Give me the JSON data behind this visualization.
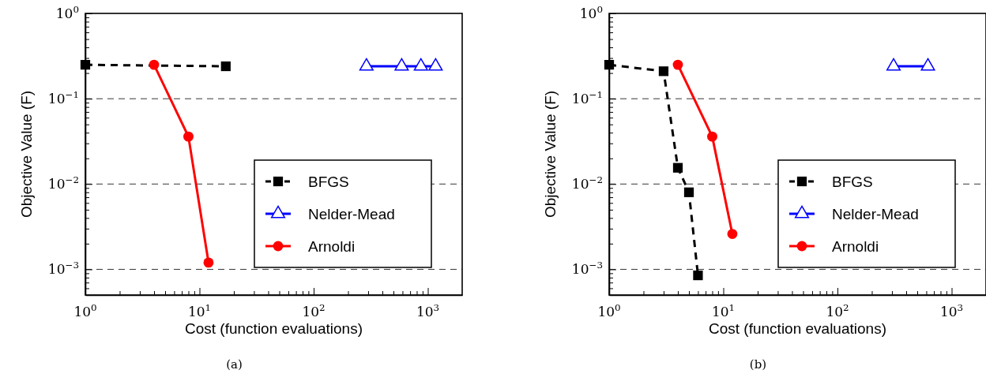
{
  "chart_data": [
    {
      "type": "line",
      "xlabel": "Cost (function evaluations)",
      "ylabel": "Objective Value (F)",
      "annotations": [
        "(a)"
      ],
      "log": "xy",
      "grid": "y",
      "legend": "right",
      "xlim": [
        1,
        2000
      ],
      "ylim": [
        0.0005,
        1
      ],
      "xticks": [
        {
          "value": 1,
          "label": "10$^{0}$"
        },
        {
          "value": 2,
          "label": null
        },
        {
          "value": 3,
          "label": null
        },
        {
          "value": 4,
          "label": null
        },
        {
          "value": 5,
          "label": null
        },
        {
          "value": 6,
          "label": null
        },
        {
          "value": 7,
          "label": null
        },
        {
          "value": 8,
          "label": null
        },
        {
          "value": 9,
          "label": null
        },
        {
          "value": 10,
          "label": "10$^{1}$"
        },
        {
          "value": 20,
          "label": null
        },
        {
          "value": 30,
          "label": null
        },
        {
          "value": 40,
          "label": null
        },
        {
          "value": 50,
          "label": null
        },
        {
          "value": 60,
          "label": null
        },
        {
          "value": 70,
          "label": null
        },
        {
          "value": 80,
          "label": null
        },
        {
          "value": 90,
          "label": null
        },
        {
          "value": 100,
          "label": "10$^{2}$"
        },
        {
          "value": 200,
          "label": null
        },
        {
          "value": 300,
          "label": null
        },
        {
          "value": 400,
          "label": null
        },
        {
          "value": 500,
          "label": null
        },
        {
          "value": 600,
          "label": null
        },
        {
          "value": 700,
          "label": null
        },
        {
          "value": 800,
          "label": null
        },
        {
          "value": 900,
          "label": null
        },
        {
          "value": 1000,
          "label": "10$^{3}$"
        }
      ],
      "yticks": [
        {
          "value": 0.0006,
          "label": null
        },
        {
          "value": 0.0007,
          "label": null
        },
        {
          "value": 0.0008,
          "label": null
        },
        {
          "value": 0.0009,
          "label": null
        },
        {
          "value": 0.001,
          "label": "10$^{−3}$"
        },
        {
          "value": 0.002,
          "label": null
        },
        {
          "value": 0.003,
          "label": null
        },
        {
          "value": 0.004,
          "label": null
        },
        {
          "value": 0.005,
          "label": null
        },
        {
          "value": 0.006,
          "label": null
        },
        {
          "value": 0.007,
          "label": null
        },
        {
          "value": 0.008,
          "label": null
        },
        {
          "value": 0.009,
          "label": null
        },
        {
          "value": 0.01,
          "label": "10$^{−2}$"
        },
        {
          "value": 0.02,
          "label": null
        },
        {
          "value": 0.03,
          "label": null
        },
        {
          "value": 0.04,
          "label": null
        },
        {
          "value": 0.05,
          "label": null
        },
        {
          "value": 0.06,
          "label": null
        },
        {
          "value": 0.07,
          "label": null
        },
        {
          "value": 0.08,
          "label": null
        },
        {
          "value": 0.09,
          "label": null
        },
        {
          "value": 0.1,
          "label": "10$^{−1}$"
        },
        {
          "value": 0.2,
          "label": null
        },
        {
          "value": 0.3,
          "label": null
        },
        {
          "value": 0.4,
          "label": null
        },
        {
          "value": 0.5,
          "label": null
        },
        {
          "value": 0.6,
          "label": null
        },
        {
          "value": 0.7,
          "label": null
        },
        {
          "value": 0.8,
          "label": null
        },
        {
          "value": 0.9,
          "label": null
        },
        {
          "value": 1,
          "label": "10$^{0}$"
        }
      ],
      "series": [
        {
          "name": "BFGS",
          "color": "#000000",
          "marker": "square",
          "line_style": "dashed",
          "x": [
            1,
            17
          ],
          "values": [
            0.25,
            0.24
          ]
        },
        {
          "name": "Nelder-Mead",
          "color": "#0000ff",
          "marker": "triangle",
          "line_style": "solid",
          "x": [
            290,
            590,
            870,
            1170
          ],
          "values": [
            0.24,
            0.24,
            0.24,
            0.24
          ]
        },
        {
          "name": "Arnoldi",
          "color": "#ff0000",
          "marker": "circle",
          "line_style": "solid",
          "x": [
            4,
            8,
            12
          ],
          "values": [
            0.25,
            0.036,
            0.0012
          ]
        }
      ]
    },
    {
      "type": "line",
      "xlabel": "Cost (function evaluations)",
      "ylabel": "Objective Value (F)",
      "annotations": [
        "(b)"
      ],
      "log": "xy",
      "grid": "y",
      "legend": "right",
      "xlim": [
        1,
        2000
      ],
      "ylim": [
        0.0005,
        1
      ],
      "xticks": [
        {
          "value": 1,
          "label": "10$^{0}$"
        },
        {
          "value": 2,
          "label": null
        },
        {
          "value": 3,
          "label": null
        },
        {
          "value": 4,
          "label": null
        },
        {
          "value": 5,
          "label": null
        },
        {
          "value": 6,
          "label": null
        },
        {
          "value": 7,
          "label": null
        },
        {
          "value": 8,
          "label": null
        },
        {
          "value": 9,
          "label": null
        },
        {
          "value": 10,
          "label": "10$^{1}$"
        },
        {
          "value": 20,
          "label": null
        },
        {
          "value": 30,
          "label": null
        },
        {
          "value": 40,
          "label": null
        },
        {
          "value": 50,
          "label": null
        },
        {
          "value": 60,
          "label": null
        },
        {
          "value": 70,
          "label": null
        },
        {
          "value": 80,
          "label": null
        },
        {
          "value": 90,
          "label": null
        },
        {
          "value": 100,
          "label": "10$^{2}$"
        },
        {
          "value": 200,
          "label": null
        },
        {
          "value": 300,
          "label": null
        },
        {
          "value": 400,
          "label": null
        },
        {
          "value": 500,
          "label": null
        },
        {
          "value": 600,
          "label": null
        },
        {
          "value": 700,
          "label": null
        },
        {
          "value": 800,
          "label": null
        },
        {
          "value": 900,
          "label": null
        },
        {
          "value": 1000,
          "label": "10$^{3}$"
        }
      ],
      "yticks": [
        {
          "value": 0.0006,
          "label": null
        },
        {
          "value": 0.0007,
          "label": null
        },
        {
          "value": 0.0008,
          "label": null
        },
        {
          "value": 0.0009,
          "label": null
        },
        {
          "value": 0.001,
          "label": "10$^{−3}$"
        },
        {
          "value": 0.002,
          "label": null
        },
        {
          "value": 0.003,
          "label": null
        },
        {
          "value": 0.004,
          "label": null
        },
        {
          "value": 0.005,
          "label": null
        },
        {
          "value": 0.006,
          "label": null
        },
        {
          "value": 0.007,
          "label": null
        },
        {
          "value": 0.008,
          "label": null
        },
        {
          "value": 0.009,
          "label": null
        },
        {
          "value": 0.01,
          "label": "10$^{−2}$"
        },
        {
          "value": 0.02,
          "label": null
        },
        {
          "value": 0.03,
          "label": null
        },
        {
          "value": 0.04,
          "label": null
        },
        {
          "value": 0.05,
          "label": null
        },
        {
          "value": 0.06,
          "label": null
        },
        {
          "value": 0.07,
          "label": null
        },
        {
          "value": 0.08,
          "label": null
        },
        {
          "value": 0.09,
          "label": null
        },
        {
          "value": 0.1,
          "label": "10$^{−1}$"
        },
        {
          "value": 0.2,
          "label": null
        },
        {
          "value": 0.3,
          "label": null
        },
        {
          "value": 0.4,
          "label": null
        },
        {
          "value": 0.5,
          "label": null
        },
        {
          "value": 0.6,
          "label": null
        },
        {
          "value": 0.7,
          "label": null
        },
        {
          "value": 0.8,
          "label": null
        },
        {
          "value": 0.9,
          "label": null
        },
        {
          "value": 1,
          "label": "10$^{0}$"
        }
      ],
      "series": [
        {
          "name": "BFGS",
          "color": "#000000",
          "marker": "square",
          "line_style": "dashed",
          "x": [
            1,
            3,
            4,
            5,
            6
          ],
          "values": [
            0.25,
            0.21,
            0.0155,
            0.008,
            0.00085
          ]
        },
        {
          "name": "Nelder-Mead",
          "color": "#0000ff",
          "marker": "triangle",
          "line_style": "solid",
          "x": [
            310,
            620
          ],
          "values": [
            0.24,
            0.24
          ]
        },
        {
          "name": "Arnoldi",
          "color": "#ff0000",
          "marker": "circle",
          "line_style": "solid",
          "x": [
            4,
            8,
            12
          ],
          "values": [
            0.25,
            0.036,
            0.0026
          ]
        }
      ]
    }
  ]
}
